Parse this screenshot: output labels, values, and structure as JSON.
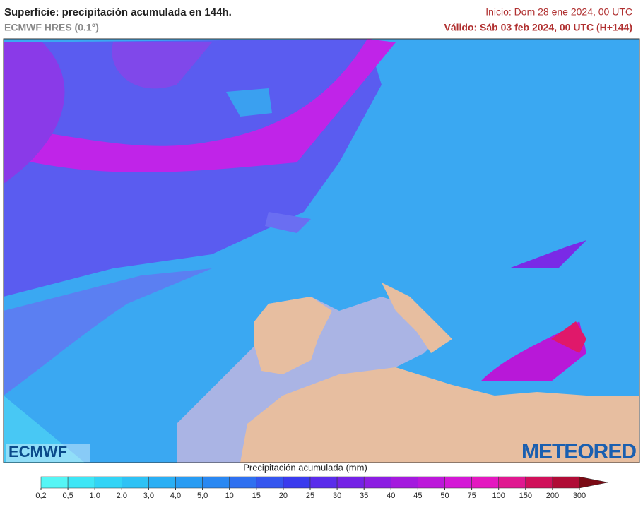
{
  "header": {
    "title": "Superficie: precipitación acumulada en 144h.",
    "subtitle": "ECMWF HRES (0.1°)",
    "init": "Inicio: Dom 28 ene 2024, 00 UTC",
    "valid": "Válido: Sáb 03 feb 2024, 00 UTC (H+144)"
  },
  "logos": {
    "left": "ECMWF",
    "right": "METEORED"
  },
  "legend": {
    "title": "Precipitación acumulada (mm)",
    "ticks": [
      {
        "value": 0.2,
        "label": "0,2"
      },
      {
        "value": 0.5,
        "label": "0,5"
      },
      {
        "value": 1.0,
        "label": "1,0"
      },
      {
        "value": 2.0,
        "label": "2,0"
      },
      {
        "value": 3.0,
        "label": "3,0"
      },
      {
        "value": 4.0,
        "label": "4,0"
      },
      {
        "value": 5.0,
        "label": "5,0"
      },
      10,
      15,
      20,
      25,
      30,
      35,
      40,
      45,
      50,
      75,
      100,
      150,
      200,
      300
    ],
    "colors": [
      "#55f5f5",
      "#3ee6f6",
      "#32d4f6",
      "#2ec2f5",
      "#2aaff4",
      "#289cf3",
      "#2a88f2",
      "#2f70f0",
      "#3556ef",
      "#3a3bee",
      "#5a2ceb",
      "#7422e6",
      "#8c1ee2",
      "#a41ade",
      "#bc18da",
      "#d418d6",
      "#e418c0",
      "#e01890",
      "#d0105a",
      "#b00c36"
    ],
    "arrow_color": "#7a0a14"
  }
}
